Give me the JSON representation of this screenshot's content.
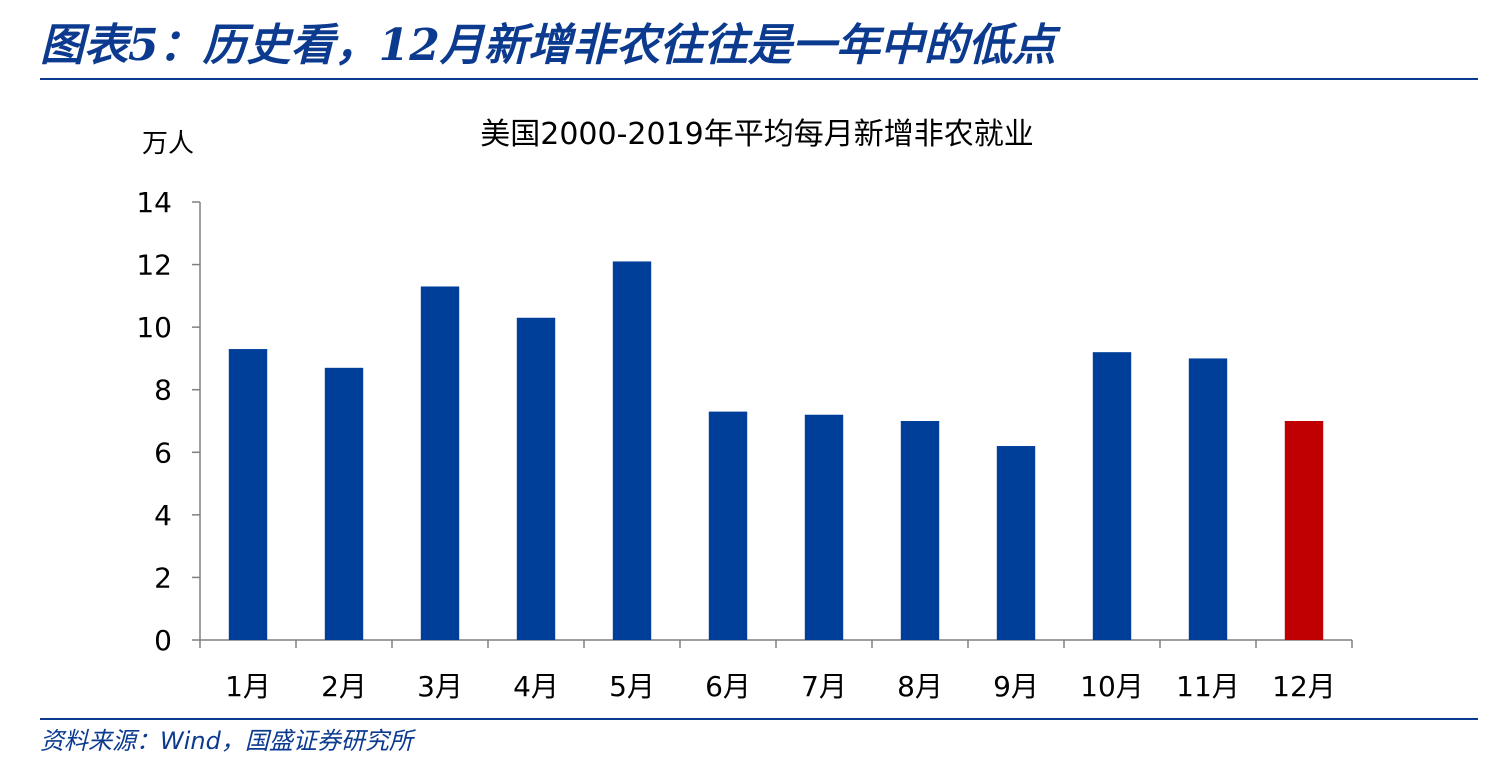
{
  "figure": {
    "title": "图表5：历史看，12月新增非农往往是一年中的低点",
    "source": "资料来源：Wind，国盛证券研究所"
  },
  "chart_data": {
    "type": "bar",
    "title": "美国2000-2019年平均每月新增非农就业",
    "ylabel": "万人",
    "xlabel": "",
    "categories": [
      "1月",
      "2月",
      "3月",
      "4月",
      "5月",
      "6月",
      "7月",
      "8月",
      "9月",
      "10月",
      "11月",
      "12月"
    ],
    "values": [
      9.3,
      8.7,
      11.3,
      10.3,
      12.1,
      7.3,
      7.2,
      7.0,
      6.2,
      9.2,
      9.0,
      7.0
    ],
    "highlight_index": 11,
    "ylim": [
      0,
      14
    ],
    "yticks": [
      "0",
      "2",
      "4",
      "6",
      "8",
      "10",
      "12",
      "14"
    ],
    "bar_color": "#003f99",
    "highlight_color": "#c00000",
    "grid": false,
    "legend": "none"
  }
}
